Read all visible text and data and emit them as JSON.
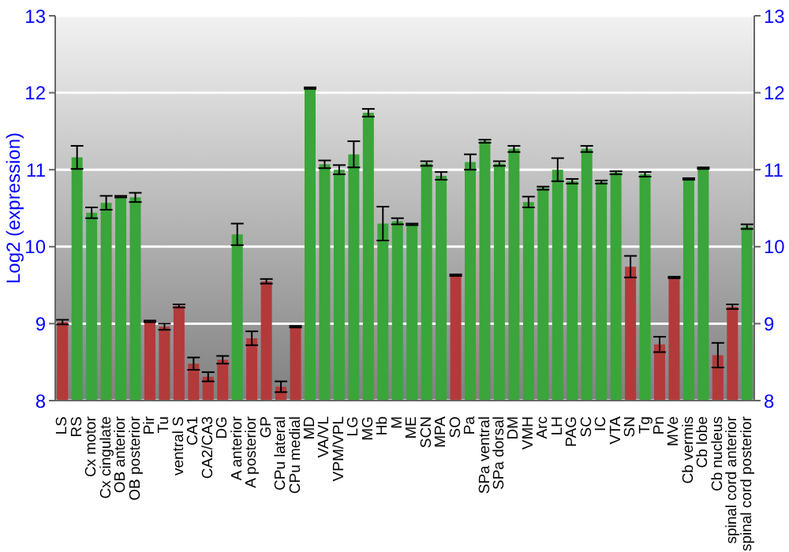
{
  "chart_data": {
    "type": "bar",
    "ylabel": "Log2 (expression)",
    "categories": [
      "LS",
      "RS",
      "Cx motor",
      "Cx cingulate",
      "OB anterior",
      "OB posterior",
      "Pir",
      "Tu",
      "ventral S",
      "CA1",
      "CA2/CA3",
      "DG",
      "A anterior",
      "A posterior",
      "GP",
      "CPu lateral",
      "CPu medial",
      "MD",
      "VA/VL",
      "VPM/VPL",
      "LG",
      "MG",
      "Hb",
      "M",
      "ME",
      "SCN",
      "MPA",
      "SO",
      "Pa",
      "SPa ventral",
      "SPa dorsal",
      "DM",
      "VMH",
      "Arc",
      "LH",
      "PAG",
      "SC",
      "IC",
      "VTA",
      "SN",
      "Tg",
      "Pn",
      "MVe",
      "Cb vermis",
      "Cb lobe",
      "Cb nucleus",
      "spinal cord anterior",
      "spinal cord posterior"
    ],
    "values": [
      9.02,
      11.16,
      10.44,
      10.57,
      10.65,
      10.64,
      9.03,
      8.96,
      9.23,
      8.48,
      8.31,
      8.53,
      10.16,
      8.81,
      9.55,
      8.18,
      8.96,
      12.06,
      11.07,
      11.0,
      11.2,
      11.74,
      10.3,
      10.33,
      10.29,
      11.08,
      10.92,
      9.63,
      11.1,
      11.37,
      11.08,
      11.27,
      10.58,
      10.76,
      11.0,
      10.85,
      11.27,
      10.84,
      10.96,
      9.74,
      10.94,
      8.73,
      9.6,
      10.88,
      11.02,
      8.59,
      9.22,
      10.26
    ],
    "errors": [
      0.03,
      0.15,
      0.07,
      0.09,
      0.01,
      0.06,
      0.01,
      0.04,
      0.02,
      0.08,
      0.06,
      0.05,
      0.14,
      0.09,
      0.03,
      0.07,
      0.01,
      0.01,
      0.05,
      0.06,
      0.17,
      0.05,
      0.22,
      0.04,
      0.01,
      0.03,
      0.05,
      0.01,
      0.1,
      0.02,
      0.03,
      0.04,
      0.07,
      0.02,
      0.15,
      0.03,
      0.04,
      0.02,
      0.02,
      0.14,
      0.03,
      0.1,
      0.01,
      0.01,
      0.01,
      0.16,
      0.03,
      0.03
    ],
    "colors": [
      "#b33a3a",
      "#3aa53a",
      "#3aa53a",
      "#3aa53a",
      "#3aa53a",
      "#3aa53a",
      "#b33a3a",
      "#b33a3a",
      "#b33a3a",
      "#b33a3a",
      "#b33a3a",
      "#b33a3a",
      "#3aa53a",
      "#b33a3a",
      "#b33a3a",
      "#b33a3a",
      "#b33a3a",
      "#3aa53a",
      "#3aa53a",
      "#3aa53a",
      "#3aa53a",
      "#3aa53a",
      "#3aa53a",
      "#3aa53a",
      "#3aa53a",
      "#3aa53a",
      "#3aa53a",
      "#b33a3a",
      "#3aa53a",
      "#3aa53a",
      "#3aa53a",
      "#3aa53a",
      "#3aa53a",
      "#3aa53a",
      "#3aa53a",
      "#3aa53a",
      "#3aa53a",
      "#3aa53a",
      "#3aa53a",
      "#b33a3a",
      "#3aa53a",
      "#b33a3a",
      "#b33a3a",
      "#3aa53a",
      "#3aa53a",
      "#b33a3a",
      "#b33a3a",
      "#3aa53a"
    ],
    "ylim": [
      8,
      13
    ],
    "yticks": [
      8,
      9,
      10,
      11,
      12,
      13
    ],
    "y2lim": [
      8,
      13
    ],
    "y2ticks": [
      8,
      9,
      10,
      11,
      12,
      13
    ],
    "grid": "y"
  }
}
